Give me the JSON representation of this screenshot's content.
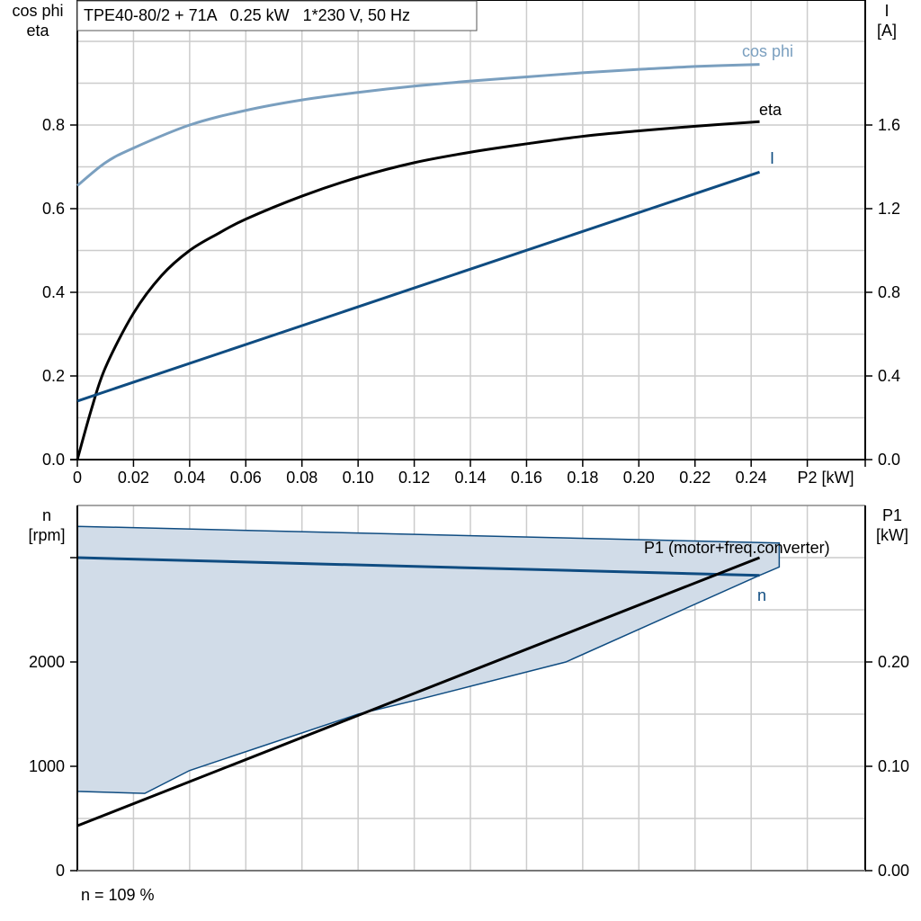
{
  "title": "TPE40-80/2 + 71A   0.25 kW   1*230 V, 50 Hz",
  "footer_note": "n = 109 %",
  "colors": {
    "grid": "#cccccc",
    "axis": "#000000",
    "cos_phi": "#7a9fbf",
    "eta": "#000000",
    "current": "#0f4c81",
    "speed": "#0f4c81",
    "speed_band_fill": "#d1dce8",
    "p1": "#000000"
  },
  "chart_data": [
    {
      "type": "line",
      "title": "TPE40-80/2 + 71A   0.25 kW   1*230 V, 50 Hz",
      "xlabel": "P2 [kW]",
      "ylabel_left": "cos phi\neta",
      "ylabel_right": "I\n[A]",
      "x_ticks": [
        "0",
        "0.02",
        "0.04",
        "0.06",
        "0.08",
        "0.10",
        "0.12",
        "0.14",
        "0.16",
        "0.18",
        "0.20",
        "0.22",
        "0.24"
      ],
      "y_left_ticks": [
        "0.0",
        "0.2",
        "0.4",
        "0.6",
        "0.8"
      ],
      "y_right_ticks": [
        "0.0",
        "0.4",
        "0.8",
        "1.2",
        "1.6"
      ],
      "xlim": [
        0,
        0.28
      ],
      "ylim_left": [
        0,
        1.1
      ],
      "ylim_right": [
        0,
        2.2
      ],
      "grid": true,
      "series": [
        {
          "name": "cos phi",
          "axis": "left",
          "x": [
            0,
            0.01,
            0.02,
            0.04,
            0.06,
            0.08,
            0.1,
            0.12,
            0.14,
            0.16,
            0.18,
            0.2,
            0.22,
            0.243
          ],
          "values": [
            0.655,
            0.71,
            0.745,
            0.8,
            0.835,
            0.86,
            0.878,
            0.893,
            0.905,
            0.915,
            0.925,
            0.933,
            0.94,
            0.945
          ]
        },
        {
          "name": "eta",
          "axis": "left",
          "x": [
            0,
            0.005,
            0.01,
            0.02,
            0.03,
            0.04,
            0.05,
            0.06,
            0.08,
            0.1,
            0.12,
            0.14,
            0.16,
            0.18,
            0.2,
            0.22,
            0.243
          ],
          "values": [
            0.0,
            0.12,
            0.22,
            0.35,
            0.44,
            0.5,
            0.54,
            0.575,
            0.63,
            0.675,
            0.71,
            0.735,
            0.755,
            0.773,
            0.786,
            0.797,
            0.808
          ]
        },
        {
          "name": "I",
          "axis": "right",
          "x": [
            0,
            0.243
          ],
          "values": [
            0.28,
            1.375
          ]
        }
      ]
    },
    {
      "type": "area",
      "xlabel": "P2 [kW]",
      "ylabel_left": "n\n[rpm]",
      "ylabel_right": "P1\n[kW]",
      "y_left_ticks": [
        "0",
        "1000",
        "2000"
      ],
      "y_right_ticks": [
        "0.00",
        "0.10",
        "0.20"
      ],
      "xlim": [
        0,
        0.28
      ],
      "ylim_left": [
        0,
        3500
      ],
      "ylim_right": [
        0,
        0.35
      ],
      "grid": true,
      "series": [
        {
          "name": "n",
          "axis": "left",
          "x": [
            0,
            0.243
          ],
          "values": [
            3000,
            2830
          ]
        },
        {
          "name": "n range (upper)",
          "axis": "left",
          "x": [
            0,
            0.25
          ],
          "values": [
            3300,
            3140
          ]
        },
        {
          "name": "n range (lower)",
          "axis": "left",
          "x": [
            0,
            0.024,
            0.04,
            0.1,
            0.12,
            0.174,
            0.243,
            0.25
          ],
          "values": [
            760,
            740,
            960,
            1500,
            1630,
            2000,
            2830,
            2910
          ]
        },
        {
          "name": "P1 (motor+freq.converter)",
          "axis": "right",
          "x": [
            0,
            0.243
          ],
          "values": [
            0.043,
            0.3
          ]
        }
      ]
    }
  ],
  "top_chart": {
    "ylabel_left_1": "cos phi",
    "ylabel_left_2": "eta",
    "ylabel_right_1": "I",
    "ylabel_right_2": "[A]",
    "xlabel": "P2 [kW]",
    "label_cos_phi": "cos phi",
    "label_eta": "eta",
    "label_i": "I",
    "x_ticks": [
      "0",
      "0.02",
      "0.04",
      "0.06",
      "0.08",
      "0.10",
      "0.12",
      "0.14",
      "0.16",
      "0.18",
      "0.20",
      "0.22",
      "0.24"
    ],
    "y_left_ticks": [
      "0.0",
      "0.2",
      "0.4",
      "0.6",
      "0.8"
    ],
    "y_right_ticks": [
      "0.0",
      "0.4",
      "0.8",
      "1.2",
      "1.6"
    ]
  },
  "bottom_chart": {
    "ylabel_left_1": "n",
    "ylabel_left_2": "[rpm]",
    "ylabel_right_1": "P1",
    "ylabel_right_2": "[kW]",
    "label_p1": "P1 (motor+freq.converter)",
    "label_n": "n",
    "y_left_ticks": [
      "0",
      "1000",
      "2000"
    ],
    "y_right_ticks": [
      "0.00",
      "0.10",
      "0.20"
    ]
  }
}
